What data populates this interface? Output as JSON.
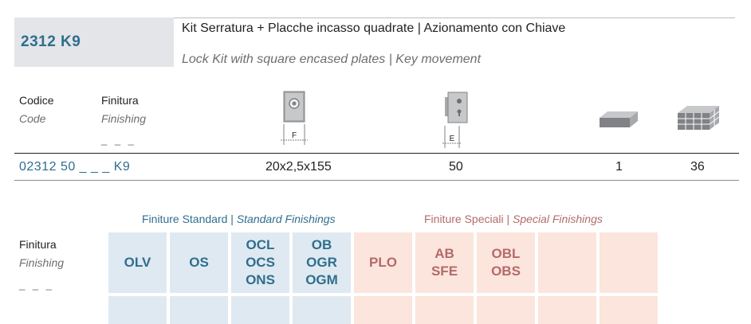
{
  "product": {
    "code": "2312 K9",
    "title_it": "Kit Serratura + Placche incasso quadrate | Azionamento con Chiave",
    "title_en": "Lock Kit with square encased plates | Key movement"
  },
  "table": {
    "headers": {
      "codice": "Codice",
      "code": "Code",
      "finitura": "Finitura",
      "finishing": "Finishing",
      "placeholder": "_ _ _",
      "dim_f_label": "F",
      "dim_e_label": "E"
    },
    "icons": [
      "plate-dimension-icon",
      "lock-dimension-icon",
      "single-box-icon",
      "box-pallet-icon"
    ],
    "row": {
      "code": "02312 50 _ _ _ K9",
      "dim_f": "20x2,5x155",
      "dim_e": "50",
      "pack": "1",
      "box": "36"
    }
  },
  "finishes": {
    "label_it": "Finitura",
    "label_en": "Finishing",
    "placeholder": "_ _ _",
    "standard_it": "Finiture Standard",
    "standard_en": "Standard Finishings",
    "special_it": "Finiture Speciali",
    "special_en": "Special Finishings",
    "separator": "|",
    "standard": [
      [
        "OLV"
      ],
      [
        "OS"
      ],
      [
        "OCL",
        "OCS",
        "ONS"
      ],
      [
        "OB",
        "OGR",
        "OGM"
      ]
    ],
    "special": [
      [
        "PLO"
      ],
      [
        "AB",
        "SFE"
      ],
      [
        "OBL",
        "OBS"
      ],
      [],
      []
    ],
    "colors": {
      "standard_bg": "#dfe9f1",
      "standard_text": "#2f6e8e",
      "special_bg": "#fbe5dc",
      "special_text": "#b36a6a"
    }
  }
}
